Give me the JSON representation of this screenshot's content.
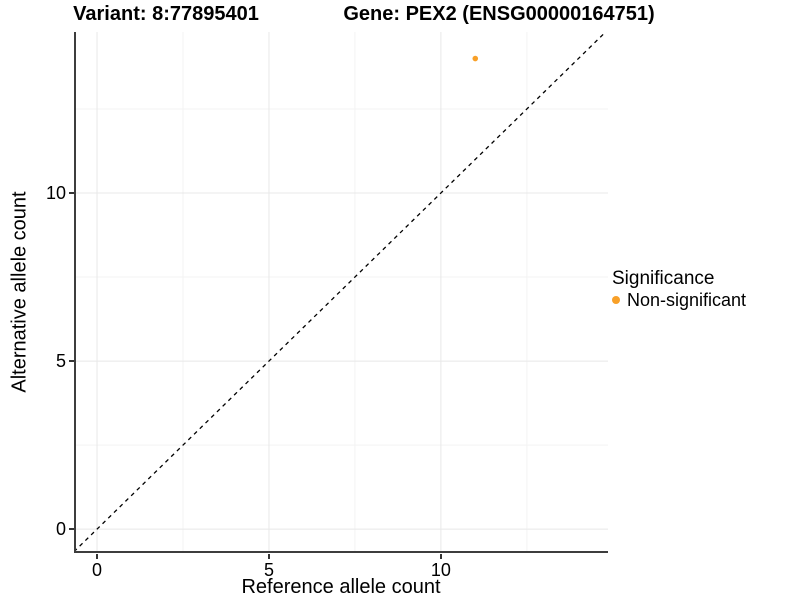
{
  "chart_data": {
    "type": "scatter",
    "titles": {
      "variant": "Variant: 8:77895401",
      "gene": "Gene: PEX2 (ENSG00000164751)"
    },
    "xlabel": "Reference allele count",
    "ylabel": "Alternative allele count",
    "xlim": [
      -0.67,
      14.86
    ],
    "ylim": [
      -0.71,
      14.79
    ],
    "x_breaks": [
      0,
      5,
      10
    ],
    "x_break_labels": [
      "0",
      "5",
      "10"
    ],
    "x_minor_breaks": [
      2.5,
      7.5,
      12.5
    ],
    "y_breaks": [
      0,
      5,
      10
    ],
    "y_break_labels": [
      "0",
      "5",
      "10"
    ],
    "y_minor_breaks": [
      2.5,
      7.5,
      12.5
    ],
    "grid": true,
    "series": [
      {
        "name": "Non-significant",
        "color": "#F8A028",
        "point_radius": 2.8,
        "points": [
          {
            "x": 11,
            "y": 14
          }
        ]
      }
    ],
    "reference_line": {
      "type": "identity y = x",
      "style": "dashed",
      "color": "#000000"
    },
    "legend": {
      "title": "Significance",
      "position": "right",
      "items": [
        {
          "label": "Non-significant",
          "color": "#F8A028"
        }
      ]
    },
    "colors": {
      "grid_major": "#E8E8E8",
      "grid_minor": "#F3F3F3",
      "axis": "#3d3d3d",
      "background": "#FFFFFF",
      "text": "#000000"
    }
  }
}
